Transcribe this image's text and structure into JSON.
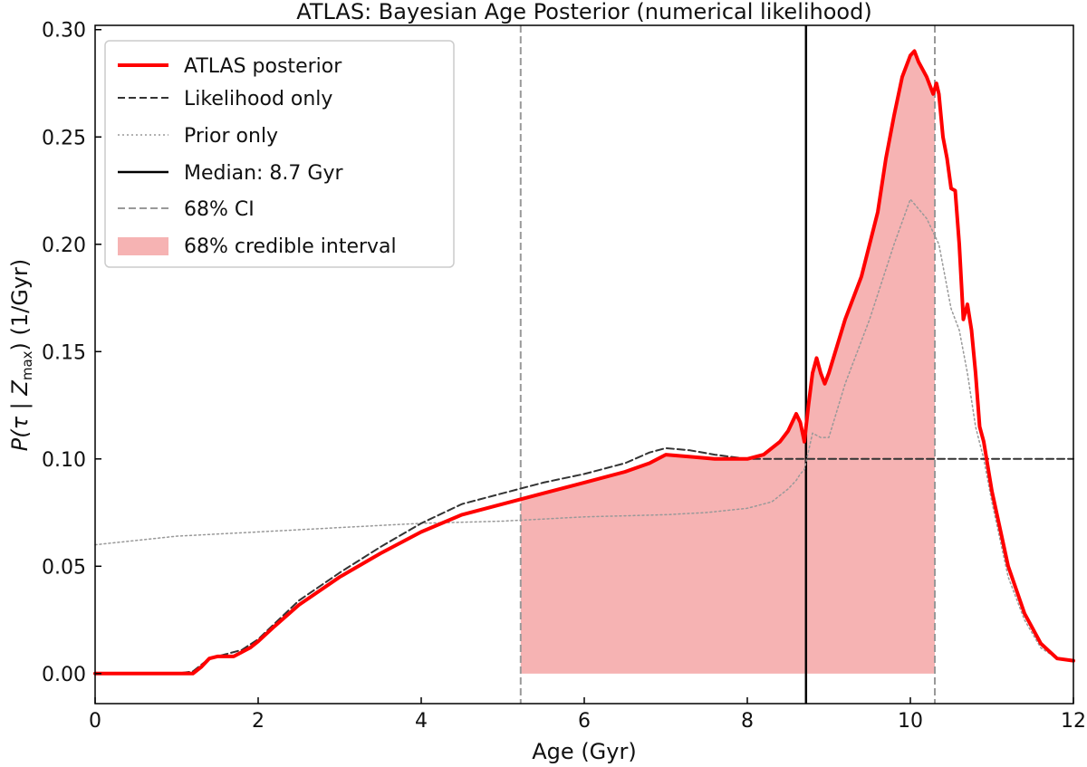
{
  "chart_data": {
    "type": "line",
    "title": "ATLAS: Bayesian Age Posterior (numerical likelihood)",
    "xlabel": "Age (Gyr)",
    "ylabel_parts": [
      "P(",
      "τ",
      " | ",
      "Z",
      "max",
      ") (1/Gyr)"
    ],
    "xlim": [
      0,
      12
    ],
    "ylim": [
      -0.014,
      0.302
    ],
    "xticks": [
      0,
      2,
      4,
      6,
      8,
      10,
      12
    ],
    "xtick_labels": [
      "0",
      "2",
      "4",
      "6",
      "8",
      "10",
      "12"
    ],
    "yticks": [
      0.0,
      0.05,
      0.1,
      0.15,
      0.2,
      0.25,
      0.3
    ],
    "ytick_labels": [
      "0.00",
      "0.05",
      "0.10",
      "0.15",
      "0.20",
      "0.25",
      "0.30"
    ],
    "grid": false,
    "legend_position": "top-left",
    "median": {
      "label": "Median: 8.7 Gyr",
      "value": 8.72,
      "color": "#000000"
    },
    "credible_interval": {
      "label": "68% CI",
      "fill_label": "68% credible interval",
      "range": [
        5.22,
        10.3
      ],
      "line_color": "#999999",
      "fill_color": "#f08080"
    },
    "series": [
      {
        "name": "ATLAS posterior",
        "style": "solid",
        "color": "#ff0000",
        "x": [
          0,
          0.5,
          1.0,
          1.2,
          1.3,
          1.4,
          1.5,
          1.6,
          1.7,
          1.8,
          1.9,
          2.0,
          2.2,
          2.5,
          3.0,
          3.5,
          4.0,
          4.5,
          5.0,
          5.5,
          6.0,
          6.5,
          6.8,
          7.0,
          7.3,
          7.6,
          8.0,
          8.2,
          8.4,
          8.5,
          8.6,
          8.65,
          8.7,
          8.75,
          8.8,
          8.85,
          8.9,
          8.95,
          9.0,
          9.2,
          9.4,
          9.6,
          9.7,
          9.8,
          9.9,
          10.0,
          10.05,
          10.1,
          10.2,
          10.28,
          10.32,
          10.35,
          10.4,
          10.45,
          10.5,
          10.55,
          10.6,
          10.65,
          10.7,
          10.75,
          10.8,
          10.85,
          10.9,
          11.0,
          11.2,
          11.4,
          11.6,
          11.8,
          12.0
        ],
        "y": [
          0.0,
          0.0,
          0.0,
          0.0,
          0.003,
          0.007,
          0.008,
          0.008,
          0.008,
          0.01,
          0.012,
          0.015,
          0.022,
          0.032,
          0.045,
          0.056,
          0.066,
          0.074,
          0.079,
          0.084,
          0.089,
          0.094,
          0.098,
          0.102,
          0.101,
          0.1,
          0.1,
          0.102,
          0.108,
          0.113,
          0.121,
          0.117,
          0.108,
          0.125,
          0.14,
          0.147,
          0.14,
          0.135,
          0.14,
          0.165,
          0.185,
          0.215,
          0.24,
          0.26,
          0.278,
          0.288,
          0.29,
          0.285,
          0.278,
          0.27,
          0.275,
          0.27,
          0.25,
          0.24,
          0.226,
          0.225,
          0.2,
          0.165,
          0.172,
          0.16,
          0.14,
          0.115,
          0.108,
          0.085,
          0.05,
          0.028,
          0.014,
          0.007,
          0.006
        ]
      },
      {
        "name": "Likelihood only",
        "style": "dashed",
        "color": "#333333",
        "x": [
          0,
          1.0,
          1.2,
          1.4,
          1.6,
          1.8,
          2.0,
          2.5,
          3.0,
          3.5,
          4.0,
          4.5,
          5.0,
          5.5,
          6.0,
          6.5,
          6.8,
          7.0,
          7.3,
          7.6,
          8.0,
          8.4,
          9.0,
          10.0,
          11.0,
          12.0
        ],
        "y": [
          0.0,
          0.0,
          0.001,
          0.007,
          0.009,
          0.011,
          0.016,
          0.034,
          0.047,
          0.059,
          0.07,
          0.079,
          0.084,
          0.089,
          0.093,
          0.098,
          0.103,
          0.105,
          0.104,
          0.102,
          0.1,
          0.1,
          0.1,
          0.1,
          0.1,
          0.1
        ]
      },
      {
        "name": "Prior only",
        "style": "dotted",
        "color": "#999999",
        "x": [
          0,
          1.0,
          2.0,
          3.0,
          4.0,
          5.0,
          6.0,
          7.0,
          7.5,
          8.0,
          8.3,
          8.5,
          8.6,
          8.65,
          8.7,
          8.8,
          8.9,
          9.0,
          9.2,
          9.5,
          9.8,
          10.0,
          10.2,
          10.35,
          10.5,
          10.6,
          10.7,
          10.8,
          10.9,
          11.0,
          11.2,
          11.4,
          11.6,
          11.8,
          12.0
        ],
        "y": [
          0.06,
          0.064,
          0.066,
          0.068,
          0.07,
          0.071,
          0.073,
          0.074,
          0.075,
          0.077,
          0.08,
          0.086,
          0.09,
          0.093,
          0.095,
          0.112,
          0.11,
          0.11,
          0.135,
          0.165,
          0.2,
          0.221,
          0.212,
          0.2,
          0.17,
          0.16,
          0.14,
          0.115,
          0.1,
          0.08,
          0.045,
          0.025,
          0.012,
          0.007,
          0.006
        ]
      }
    ]
  }
}
